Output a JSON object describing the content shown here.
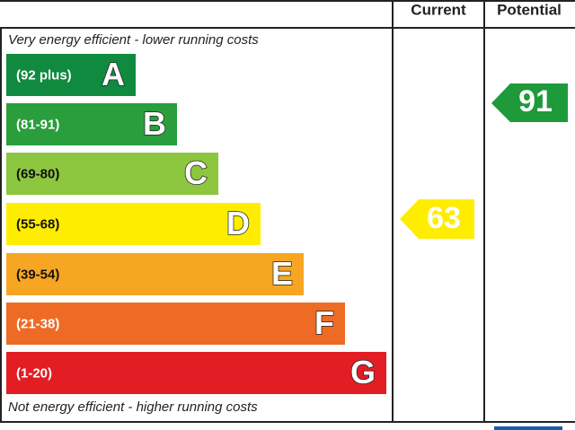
{
  "header": {
    "columns": [
      "Current",
      "Potential"
    ]
  },
  "top_caption": "Very energy efficient - lower running costs",
  "bottom_caption": "Not energy efficient - higher running costs",
  "bands": [
    {
      "range": "(92 plus)",
      "letter": "A"
    },
    {
      "range": "(81-91)",
      "letter": "B"
    },
    {
      "range": "(69-80)",
      "letter": "C"
    },
    {
      "range": "(55-68)",
      "letter": "D"
    },
    {
      "range": "(39-54)",
      "letter": "E"
    },
    {
      "range": "(21-38)",
      "letter": "F"
    },
    {
      "range": "(1-20)",
      "letter": "G"
    }
  ],
  "current": {
    "value": 63
  },
  "potential": {
    "value": 91
  }
}
